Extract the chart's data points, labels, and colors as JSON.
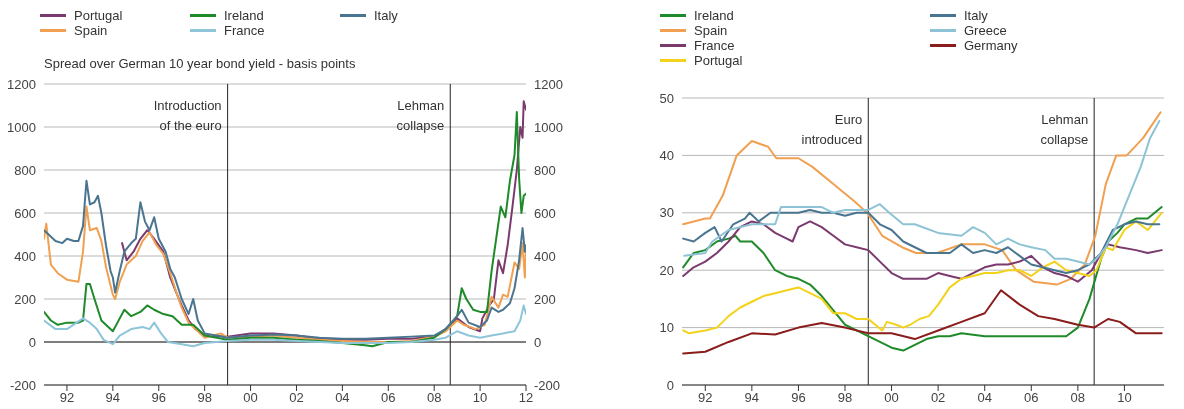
{
  "chart_data": [
    {
      "type": "line",
      "ylabel": "Spread over German 10 year bond yield - basis points",
      "legend": "top left",
      "grid": "y",
      "xlim": [
        1991,
        2012
      ],
      "xticks": [
        {
          "value": 1992,
          "label": "92"
        },
        {
          "value": 1994,
          "label": "94"
        },
        {
          "value": 1996,
          "label": "96"
        },
        {
          "value": 1998,
          "label": "98"
        },
        {
          "value": 2000,
          "label": "00"
        },
        {
          "value": 2002,
          "label": "02"
        },
        {
          "value": 2004,
          "label": "04"
        },
        {
          "value": 2006,
          "label": "06"
        },
        {
          "value": 2008,
          "label": "08"
        },
        {
          "value": 2010,
          "label": "10"
        },
        {
          "value": 2012,
          "label": "12"
        }
      ],
      "ylim": [
        -200,
        1200
      ],
      "yticks": [
        -200,
        0,
        200,
        400,
        600,
        800,
        1000,
        1200
      ],
      "y2lim": [
        -200,
        1200
      ],
      "y2ticks": [
        -200,
        0,
        200,
        400,
        600,
        800,
        1000,
        1200
      ],
      "ref_lines": [
        {
          "axis": "x",
          "value": 1999,
          "label": "Introduction of the euro",
          "color": "#222222"
        },
        {
          "axis": "x",
          "value": 2008.7,
          "label": "Lehman collapse",
          "color": "#222222"
        },
        {
          "axis": "y",
          "value": 0,
          "color": "#222222"
        }
      ],
      "series": [
        {
          "name": "Portugal",
          "color": "#7b3a6e",
          "x": [
            1994.4,
            1994.6,
            1994.9,
            1995.2,
            1995.5,
            1995.8,
            1996.2,
            1996.5,
            1996.8,
            1997,
            1997.3,
            1997.6,
            1998,
            1999,
            2000,
            2001,
            2002,
            2003,
            2004,
            2005,
            2006,
            2007,
            2008,
            2008.5,
            2009,
            2009.5,
            2010,
            2010.1,
            2010.4,
            2010.6,
            2010.8,
            2011,
            2011.2,
            2011.4,
            2011.6,
            2011.75,
            2011.85,
            2011.9,
            2012
          ],
          "values": [
            460,
            380,
            420,
            480,
            520,
            480,
            420,
            300,
            220,
            170,
            100,
            60,
            30,
            25,
            40,
            40,
            30,
            15,
            10,
            10,
            15,
            15,
            25,
            60,
            110,
            70,
            50,
            110,
            170,
            200,
            380,
            320,
            450,
            620,
            800,
            1000,
            950,
            1120,
            1080
          ]
        },
        {
          "name": "Spain",
          "color": "#f0a050",
          "x": [
            1991,
            1991.1,
            1991.3,
            1991.6,
            1992,
            1992.5,
            1992.7,
            1992.85,
            1993,
            1993.3,
            1993.5,
            1993.7,
            1994,
            1994.1,
            1994.3,
            1994.6,
            1995,
            1995.3,
            1995.6,
            1995.9,
            1996.2,
            1996.5,
            1996.8,
            1997,
            1997.3,
            1997.6,
            1998,
            1998.7,
            1999,
            2000,
            2001,
            2002,
            2003,
            2004,
            2005,
            2006,
            2007,
            2008,
            2008.5,
            2009,
            2009.3,
            2009.8,
            2010.2,
            2010.5,
            2010.8,
            2011,
            2011.2,
            2011.5,
            2011.7,
            2011.85,
            2011.95,
            2012
          ],
          "values": [
            480,
            550,
            360,
            320,
            290,
            280,
            420,
            630,
            520,
            530,
            470,
            350,
            220,
            200,
            280,
            360,
            400,
            470,
            510,
            450,
            410,
            320,
            220,
            160,
            90,
            60,
            20,
            40,
            20,
            25,
            30,
            20,
            10,
            5,
            0,
            0,
            5,
            25,
            50,
            100,
            80,
            60,
            80,
            210,
            160,
            220,
            210,
            370,
            340,
            460,
            300,
            420
          ]
        },
        {
          "name": "Ireland",
          "color": "#1e8a2a",
          "x": [
            1991,
            1991.3,
            1991.6,
            1992,
            1992.5,
            1992.7,
            1992.85,
            1993,
            1993.2,
            1993.5,
            1993.8,
            1994,
            1994.2,
            1994.5,
            1994.8,
            1995.2,
            1995.5,
            1995.8,
            1996.2,
            1996.6,
            1997,
            1997.5,
            1998,
            1999,
            2000,
            2001,
            2002,
            2003,
            2004,
            2005,
            2005.3,
            2006,
            2007,
            2008,
            2008.5,
            2009,
            2009.2,
            2009.4,
            2009.7,
            2010,
            2010.3,
            2010.5,
            2010.7,
            2010.9,
            2011.1,
            2011.3,
            2011.5,
            2011.6,
            2011.7,
            2011.8,
            2011.9,
            2012
          ],
          "values": [
            140,
            100,
            80,
            90,
            90,
            100,
            270,
            270,
            200,
            100,
            70,
            50,
            90,
            150,
            120,
            140,
            170,
            150,
            130,
            120,
            80,
            80,
            30,
            10,
            20,
            20,
            10,
            5,
            -5,
            -15,
            -20,
            0,
            0,
            20,
            60,
            120,
            250,
            200,
            150,
            140,
            140,
            330,
            480,
            630,
            580,
            750,
            870,
            1070,
            760,
            600,
            680,
            690
          ]
        },
        {
          "name": "France",
          "color": "#8ec5d8",
          "x": [
            1991,
            1991.5,
            1992,
            1992.7,
            1993,
            1993.3,
            1993.6,
            1994,
            1994.3,
            1994.8,
            1995.3,
            1995.6,
            1995.8,
            1996.1,
            1996.4,
            1997,
            1997.5,
            1998,
            1999,
            2000,
            2001,
            2002,
            2003,
            2004,
            2005,
            2006,
            2007,
            2008,
            2008.5,
            2009,
            2009.5,
            2010,
            2010.5,
            2011,
            2011.5,
            2011.75,
            2011.9,
            2012
          ],
          "values": [
            100,
            60,
            60,
            110,
            90,
            60,
            10,
            -10,
            30,
            60,
            70,
            60,
            90,
            40,
            0,
            -10,
            -20,
            -5,
            5,
            10,
            10,
            5,
            0,
            -5,
            -5,
            -5,
            0,
            10,
            20,
            50,
            30,
            20,
            30,
            40,
            50,
            100,
            170,
            130
          ]
        },
        {
          "name": "Italy",
          "color": "#4a7590",
          "x": [
            1991,
            1991.2,
            1991.5,
            1991.8,
            1992,
            1992.3,
            1992.5,
            1992.7,
            1992.85,
            1993,
            1993.2,
            1993.35,
            1993.5,
            1993.7,
            1993.9,
            1994,
            1994.1,
            1994.3,
            1994.5,
            1994.8,
            1995,
            1995.2,
            1995.4,
            1995.6,
            1995.8,
            1996,
            1996.3,
            1996.5,
            1996.7,
            1997,
            1997.3,
            1997.5,
            1997.7,
            1998,
            1998.5,
            1999,
            2000,
            2001,
            2002,
            2003,
            2004,
            2005,
            2006,
            2007,
            2008,
            2008.5,
            2009,
            2009.2,
            2009.5,
            2010,
            2010.3,
            2010.5,
            2010.8,
            2011,
            2011.3,
            2011.5,
            2011.7,
            2011.85,
            2011.95,
            2012
          ],
          "values": [
            520,
            500,
            470,
            460,
            480,
            470,
            470,
            540,
            750,
            640,
            650,
            680,
            600,
            450,
            330,
            300,
            230,
            330,
            420,
            460,
            480,
            650,
            560,
            520,
            580,
            480,
            420,
            340,
            300,
            200,
            130,
            200,
            100,
            40,
            30,
            20,
            30,
            35,
            30,
            20,
            15,
            15,
            20,
            25,
            30,
            60,
            120,
            150,
            90,
            70,
            100,
            160,
            140,
            150,
            180,
            250,
            380,
            530,
            420,
            450
          ]
        }
      ]
    },
    {
      "type": "line",
      "legend": "top left",
      "grid": "y",
      "xlim": [
        1991,
        2011.7
      ],
      "xticks": [
        {
          "value": 1992,
          "label": "92"
        },
        {
          "value": 1994,
          "label": "94"
        },
        {
          "value": 1996,
          "label": "96"
        },
        {
          "value": 1998,
          "label": "98"
        },
        {
          "value": 2000,
          "label": "00"
        },
        {
          "value": 2002,
          "label": "02"
        },
        {
          "value": 2004,
          "label": "04"
        },
        {
          "value": 2006,
          "label": "06"
        },
        {
          "value": 2008,
          "label": "08"
        },
        {
          "value": 2010,
          "label": "10"
        }
      ],
      "ylim": [
        0,
        50
      ],
      "yticks": [
        0,
        10,
        20,
        30,
        40,
        50
      ],
      "ref_lines": [
        {
          "axis": "x",
          "value": 1999,
          "label": "Euro introduced",
          "color": "#222222"
        },
        {
          "axis": "x",
          "value": 2008.7,
          "label": "Lehman collapse",
          "color": "#222222"
        }
      ],
      "series": [
        {
          "name": "Ireland",
          "color": "#1e8a2a",
          "x": [
            1991.05,
            1991.5,
            1992,
            1992.5,
            1993,
            1993.3,
            1993.5,
            1994,
            1994.5,
            1995,
            1995.5,
            1996,
            1996.5,
            1997,
            1997.5,
            1998,
            1998.5,
            1999,
            1999.5,
            2000,
            2000.5,
            2001,
            2001.5,
            2002,
            2002.5,
            2003,
            2004,
            2005,
            2006,
            2007,
            2007.5,
            2008,
            2008.5,
            2009,
            2009.3,
            2009.7,
            2010,
            2010.5,
            2011,
            2011.6
          ],
          "values": [
            20.5,
            23,
            23.5,
            25,
            25.5,
            26,
            25,
            25,
            23,
            20,
            19,
            18.5,
            17.5,
            15.5,
            13,
            10.5,
            9.5,
            8.5,
            7.5,
            6.5,
            6,
            7,
            8,
            8.5,
            8.5,
            9,
            8.5,
            8.5,
            8.5,
            8.5,
            8.5,
            10,
            15,
            22,
            25,
            26.5,
            28,
            29,
            29,
            31
          ]
        },
        {
          "name": "Spain",
          "color": "#f0a050",
          "x": [
            1991.05,
            1992,
            1992.2,
            1992.75,
            1993.35,
            1994,
            1994.7,
            1995.05,
            1996,
            1996.6,
            1997.5,
            1998.4,
            1998.95,
            1999.6,
            2000.45,
            2001.05,
            2001.95,
            2003,
            2004,
            2004.75,
            2005.35,
            2006.1,
            2007.1,
            2007.7,
            2008.3,
            2008.75,
            2009.2,
            2009.65,
            2010.1,
            2010.8,
            2011.55
          ],
          "values": [
            28,
            29,
            29,
            33,
            40,
            42.5,
            41.5,
            39.5,
            39.5,
            38,
            35,
            32,
            30,
            26,
            24,
            23,
            23,
            24.5,
            24.5,
            23.5,
            20,
            18,
            17.5,
            18.5,
            21,
            26,
            35,
            40,
            40,
            43,
            47.5
          ]
        },
        {
          "name": "France",
          "color": "#7b3a6e",
          "x": [
            1991.05,
            1991.5,
            1992,
            1992.5,
            1993,
            1993.5,
            1994,
            1994.5,
            1995,
            1995.5,
            1995.75,
            1996,
            1996.5,
            1997,
            1997.5,
            1998,
            1998.5,
            1999,
            1999.5,
            2000,
            2000.5,
            2001,
            2001.5,
            2002,
            2002.5,
            2003,
            2003.5,
            2004,
            2004.5,
            2005,
            2005.5,
            2006,
            2006.5,
            2007,
            2007.5,
            2008,
            2008.6,
            2009,
            2009.3,
            2009.8,
            2010.5,
            2011,
            2011.6
          ],
          "values": [
            19,
            20.5,
            21.5,
            23,
            25,
            27.5,
            28.5,
            28,
            26.5,
            25.5,
            25,
            27.5,
            28.5,
            27.5,
            26,
            24.5,
            24,
            23.5,
            21.5,
            19.5,
            18.5,
            18.5,
            18.5,
            19.5,
            19,
            18.5,
            19.5,
            20.5,
            21,
            21,
            21.5,
            22.5,
            20.5,
            19.5,
            19,
            18,
            20,
            23,
            24.5,
            24,
            23.5,
            23,
            23.5
          ]
        },
        {
          "name": "Portugal",
          "color": "#f2d21a",
          "x": [
            1991.05,
            1991.3,
            1992,
            1992.5,
            1993,
            1993.5,
            1994,
            1994.5,
            1995,
            1995.5,
            1996,
            1996.5,
            1997,
            1997.5,
            1998,
            1998.5,
            1999,
            1999.3,
            1999.6,
            1999.8,
            2000.2,
            2000.5,
            2000.8,
            2001.2,
            2001.6,
            2002,
            2002.5,
            2003,
            2003.5,
            2004,
            2004.5,
            2005,
            2005.5,
            2006,
            2006.5,
            2007,
            2007.5,
            2008,
            2008.5,
            2008.8,
            2009.2,
            2009.5,
            2010,
            2010.5,
            2011,
            2011.6
          ],
          "values": [
            9.5,
            9,
            9.5,
            10,
            12,
            13.5,
            14.5,
            15.5,
            16,
            16.5,
            17,
            16,
            15,
            12.5,
            12.5,
            11.5,
            11.5,
            10.5,
            9.5,
            11,
            10.5,
            10,
            10.5,
            11.5,
            12,
            14,
            17,
            18.5,
            19,
            19.5,
            19.5,
            20,
            20,
            19,
            20.5,
            21.5,
            20,
            19.5,
            19,
            20,
            24,
            23.5,
            27,
            28.5,
            27,
            30
          ]
        },
        {
          "name": "Italy",
          "color": "#4a7590",
          "x": [
            1991.05,
            1991.5,
            1992,
            1992.4,
            1992.7,
            1993.2,
            1993.7,
            1993.9,
            1994.3,
            1994.8,
            1995.5,
            1996,
            1996.5,
            1997,
            1997.5,
            1998,
            1998.5,
            1999,
            1999.5,
            2000,
            2000.5,
            2001,
            2001.5,
            2002,
            2002.5,
            2003,
            2003.5,
            2004,
            2004.5,
            2005,
            2005.5,
            2006,
            2006.5,
            2007,
            2007.5,
            2008,
            2008.5,
            2009,
            2009.5,
            2010,
            2010.5,
            2011,
            2011.5
          ],
          "values": [
            25.5,
            25,
            26.5,
            27.5,
            25,
            28,
            29,
            30,
            28.5,
            30,
            30,
            30,
            30.5,
            30,
            30,
            29.5,
            30,
            30,
            28,
            27,
            25,
            24,
            23,
            23,
            23,
            24.5,
            23,
            23.5,
            23,
            24,
            22.5,
            21,
            20.5,
            20,
            19.5,
            20,
            21,
            23,
            27,
            28,
            28.5,
            28,
            28
          ]
        },
        {
          "name": "Greece",
          "color": "#8ec3d6",
          "x": [
            1991.1,
            1992,
            1992.3,
            1993,
            1994,
            1995,
            1995.25,
            1996,
            1997,
            1997.5,
            1998,
            1999,
            1999.5,
            1999.9,
            2000.5,
            2001,
            2002,
            2003,
            2003.5,
            2004,
            2004.5,
            2005,
            2005.5,
            2006,
            2006.6,
            2007,
            2007.5,
            2008,
            2008.5,
            2008.8,
            2009.2,
            2009.7,
            2010.2,
            2010.7,
            2011.1,
            2011.5
          ],
          "values": [
            22.5,
            23,
            25,
            27,
            28,
            28,
            31,
            31,
            31,
            30,
            30.5,
            30.5,
            31.5,
            30,
            28,
            28,
            26.5,
            26,
            27.5,
            26.5,
            24.5,
            25.5,
            24.5,
            24,
            23.5,
            22,
            22,
            21.5,
            21,
            22,
            24,
            28,
            33,
            38,
            43,
            46
          ]
        },
        {
          "name": "Germany",
          "color": "#8b1c1c",
          "x": [
            1991.05,
            1992,
            1993,
            1994,
            1995,
            1996,
            1997,
            1998,
            1999,
            2000,
            2001,
            2002,
            2003,
            2004,
            2004.7,
            2005.5,
            2006.3,
            2007,
            2008,
            2008.7,
            2009.3,
            2009.8,
            2010.5,
            2011.6
          ],
          "values": [
            5.5,
            5.8,
            7.5,
            9,
            8.8,
            10,
            10.8,
            10,
            9,
            9,
            8,
            9.5,
            11,
            12.5,
            16.5,
            14,
            12,
            11.5,
            10.5,
            10,
            11.5,
            11,
            9,
            9
          ]
        }
      ]
    }
  ]
}
